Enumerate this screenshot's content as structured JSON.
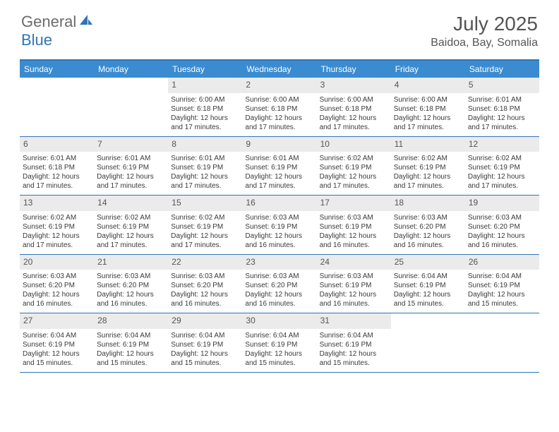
{
  "logo": {
    "general": "General",
    "blue": "Blue"
  },
  "title": "July 2025",
  "location": "Baidoa, Bay, Somalia",
  "colors": {
    "header_bg": "#3b8bd0",
    "border": "#2f75b5",
    "daynum_bg": "#ebebeb",
    "text": "#333333",
    "logo_gray": "#6b6b6b",
    "logo_blue": "#2f75b5"
  },
  "weekdays": [
    "Sunday",
    "Monday",
    "Tuesday",
    "Wednesday",
    "Thursday",
    "Friday",
    "Saturday"
  ],
  "weeks": [
    [
      {
        "n": "",
        "sunrise": "",
        "sunset": "",
        "daylight": ""
      },
      {
        "n": "",
        "sunrise": "",
        "sunset": "",
        "daylight": ""
      },
      {
        "n": "1",
        "sunrise": "Sunrise: 6:00 AM",
        "sunset": "Sunset: 6:18 PM",
        "daylight": "Daylight: 12 hours and 17 minutes."
      },
      {
        "n": "2",
        "sunrise": "Sunrise: 6:00 AM",
        "sunset": "Sunset: 6:18 PM",
        "daylight": "Daylight: 12 hours and 17 minutes."
      },
      {
        "n": "3",
        "sunrise": "Sunrise: 6:00 AM",
        "sunset": "Sunset: 6:18 PM",
        "daylight": "Daylight: 12 hours and 17 minutes."
      },
      {
        "n": "4",
        "sunrise": "Sunrise: 6:00 AM",
        "sunset": "Sunset: 6:18 PM",
        "daylight": "Daylight: 12 hours and 17 minutes."
      },
      {
        "n": "5",
        "sunrise": "Sunrise: 6:01 AM",
        "sunset": "Sunset: 6:18 PM",
        "daylight": "Daylight: 12 hours and 17 minutes."
      }
    ],
    [
      {
        "n": "6",
        "sunrise": "Sunrise: 6:01 AM",
        "sunset": "Sunset: 6:18 PM",
        "daylight": "Daylight: 12 hours and 17 minutes."
      },
      {
        "n": "7",
        "sunrise": "Sunrise: 6:01 AM",
        "sunset": "Sunset: 6:19 PM",
        "daylight": "Daylight: 12 hours and 17 minutes."
      },
      {
        "n": "8",
        "sunrise": "Sunrise: 6:01 AM",
        "sunset": "Sunset: 6:19 PM",
        "daylight": "Daylight: 12 hours and 17 minutes."
      },
      {
        "n": "9",
        "sunrise": "Sunrise: 6:01 AM",
        "sunset": "Sunset: 6:19 PM",
        "daylight": "Daylight: 12 hours and 17 minutes."
      },
      {
        "n": "10",
        "sunrise": "Sunrise: 6:02 AM",
        "sunset": "Sunset: 6:19 PM",
        "daylight": "Daylight: 12 hours and 17 minutes."
      },
      {
        "n": "11",
        "sunrise": "Sunrise: 6:02 AM",
        "sunset": "Sunset: 6:19 PM",
        "daylight": "Daylight: 12 hours and 17 minutes."
      },
      {
        "n": "12",
        "sunrise": "Sunrise: 6:02 AM",
        "sunset": "Sunset: 6:19 PM",
        "daylight": "Daylight: 12 hours and 17 minutes."
      }
    ],
    [
      {
        "n": "13",
        "sunrise": "Sunrise: 6:02 AM",
        "sunset": "Sunset: 6:19 PM",
        "daylight": "Daylight: 12 hours and 17 minutes."
      },
      {
        "n": "14",
        "sunrise": "Sunrise: 6:02 AM",
        "sunset": "Sunset: 6:19 PM",
        "daylight": "Daylight: 12 hours and 17 minutes."
      },
      {
        "n": "15",
        "sunrise": "Sunrise: 6:02 AM",
        "sunset": "Sunset: 6:19 PM",
        "daylight": "Daylight: 12 hours and 17 minutes."
      },
      {
        "n": "16",
        "sunrise": "Sunrise: 6:03 AM",
        "sunset": "Sunset: 6:19 PM",
        "daylight": "Daylight: 12 hours and 16 minutes."
      },
      {
        "n": "17",
        "sunrise": "Sunrise: 6:03 AM",
        "sunset": "Sunset: 6:19 PM",
        "daylight": "Daylight: 12 hours and 16 minutes."
      },
      {
        "n": "18",
        "sunrise": "Sunrise: 6:03 AM",
        "sunset": "Sunset: 6:20 PM",
        "daylight": "Daylight: 12 hours and 16 minutes."
      },
      {
        "n": "19",
        "sunrise": "Sunrise: 6:03 AM",
        "sunset": "Sunset: 6:20 PM",
        "daylight": "Daylight: 12 hours and 16 minutes."
      }
    ],
    [
      {
        "n": "20",
        "sunrise": "Sunrise: 6:03 AM",
        "sunset": "Sunset: 6:20 PM",
        "daylight": "Daylight: 12 hours and 16 minutes."
      },
      {
        "n": "21",
        "sunrise": "Sunrise: 6:03 AM",
        "sunset": "Sunset: 6:20 PM",
        "daylight": "Daylight: 12 hours and 16 minutes."
      },
      {
        "n": "22",
        "sunrise": "Sunrise: 6:03 AM",
        "sunset": "Sunset: 6:20 PM",
        "daylight": "Daylight: 12 hours and 16 minutes."
      },
      {
        "n": "23",
        "sunrise": "Sunrise: 6:03 AM",
        "sunset": "Sunset: 6:20 PM",
        "daylight": "Daylight: 12 hours and 16 minutes."
      },
      {
        "n": "24",
        "sunrise": "Sunrise: 6:03 AM",
        "sunset": "Sunset: 6:19 PM",
        "daylight": "Daylight: 12 hours and 16 minutes."
      },
      {
        "n": "25",
        "sunrise": "Sunrise: 6:04 AM",
        "sunset": "Sunset: 6:19 PM",
        "daylight": "Daylight: 12 hours and 15 minutes."
      },
      {
        "n": "26",
        "sunrise": "Sunrise: 6:04 AM",
        "sunset": "Sunset: 6:19 PM",
        "daylight": "Daylight: 12 hours and 15 minutes."
      }
    ],
    [
      {
        "n": "27",
        "sunrise": "Sunrise: 6:04 AM",
        "sunset": "Sunset: 6:19 PM",
        "daylight": "Daylight: 12 hours and 15 minutes."
      },
      {
        "n": "28",
        "sunrise": "Sunrise: 6:04 AM",
        "sunset": "Sunset: 6:19 PM",
        "daylight": "Daylight: 12 hours and 15 minutes."
      },
      {
        "n": "29",
        "sunrise": "Sunrise: 6:04 AM",
        "sunset": "Sunset: 6:19 PM",
        "daylight": "Daylight: 12 hours and 15 minutes."
      },
      {
        "n": "30",
        "sunrise": "Sunrise: 6:04 AM",
        "sunset": "Sunset: 6:19 PM",
        "daylight": "Daylight: 12 hours and 15 minutes."
      },
      {
        "n": "31",
        "sunrise": "Sunrise: 6:04 AM",
        "sunset": "Sunset: 6:19 PM",
        "daylight": "Daylight: 12 hours and 15 minutes."
      },
      {
        "n": "",
        "sunrise": "",
        "sunset": "",
        "daylight": ""
      },
      {
        "n": "",
        "sunrise": "",
        "sunset": "",
        "daylight": ""
      }
    ]
  ]
}
